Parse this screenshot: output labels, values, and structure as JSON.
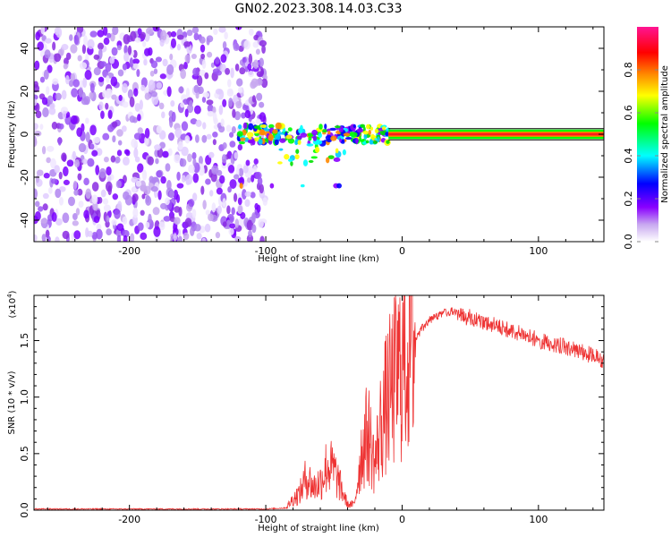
{
  "page_title": "GN02.2023.308.14.03.C33",
  "chart_data": [
    {
      "type": "heatmap",
      "title": "GN02.2023.308.14.03.C33",
      "xlabel": "Height of straight line (km)",
      "ylabel": "Frequency (Hz)",
      "xlim": [
        -270,
        148
      ],
      "ylim": [
        -50,
        50
      ],
      "xticks": [
        -200,
        -100,
        0,
        100
      ],
      "yticks": [
        -40,
        -20,
        0,
        20,
        40
      ],
      "colorbar": {
        "label": "Normalized spectral amplitude",
        "range": [
          0,
          1
        ],
        "ticks": [
          "0.0",
          "0.2",
          "0.4",
          "0.6",
          "0.8"
        ],
        "colors": [
          "#ffffff",
          "#c8a8f0",
          "#8a00ff",
          "#0000ff",
          "#00ffff",
          "#00ff00",
          "#ffff00",
          "#ff8800",
          "#ff0000",
          "#ff1493"
        ]
      },
      "regions": [
        {
          "name": "noise",
          "x_range": [
            -270,
            -100
          ],
          "f_range": [
            -50,
            50
          ],
          "amplitude": 0.15
        },
        {
          "name": "signal-cluster",
          "x_range": [
            -120,
            -10
          ],
          "f_range": [
            -25,
            6
          ],
          "amplitude": 0.5
        },
        {
          "name": "carrier-line",
          "x_range": [
            -10,
            148
          ],
          "f_range": [
            -1,
            1
          ],
          "amplitude": 0.95
        }
      ]
    },
    {
      "type": "line",
      "xlabel": "Height of straight line (km)",
      "ylabel": "SNR (10 * v/v)",
      "y_multiplier": "(x10",
      "y_multiplier_exp": "4",
      "y_multiplier_close": ")",
      "xlim": [
        -270,
        148
      ],
      "ylim": [
        0,
        1.9
      ],
      "xticks": [
        -200,
        -100,
        0,
        100
      ],
      "yticks": [
        "0.0",
        "0.5",
        "1.0",
        "1.5"
      ],
      "ytick_values": [
        0,
        0.5,
        1.0,
        1.5
      ],
      "series": [
        {
          "color": "#ee3333",
          "x": [
            -270,
            -200,
            -150,
            -100,
            -85,
            -80,
            -75,
            -70,
            -65,
            -60,
            -55,
            -50,
            -45,
            -40,
            -35,
            -30,
            -25,
            -20,
            -15,
            -10,
            -5,
            0,
            5,
            10,
            15,
            20,
            30,
            40,
            50,
            60,
            70,
            80,
            90,
            100,
            110,
            120,
            130,
            140,
            148
          ],
          "y": [
            0.01,
            0.01,
            0.01,
            0.01,
            0.02,
            0.1,
            0.15,
            0.3,
            0.2,
            0.25,
            0.4,
            0.35,
            0.2,
            0.05,
            0.05,
            0.5,
            0.7,
            0.4,
            0.8,
            1.0,
            1.15,
            1.3,
            1.45,
            1.55,
            1.65,
            1.72,
            1.78,
            1.8,
            1.78,
            1.74,
            1.7,
            1.66,
            1.62,
            1.58,
            1.55,
            1.52,
            1.48,
            1.44,
            1.4
          ]
        }
      ]
    }
  ]
}
